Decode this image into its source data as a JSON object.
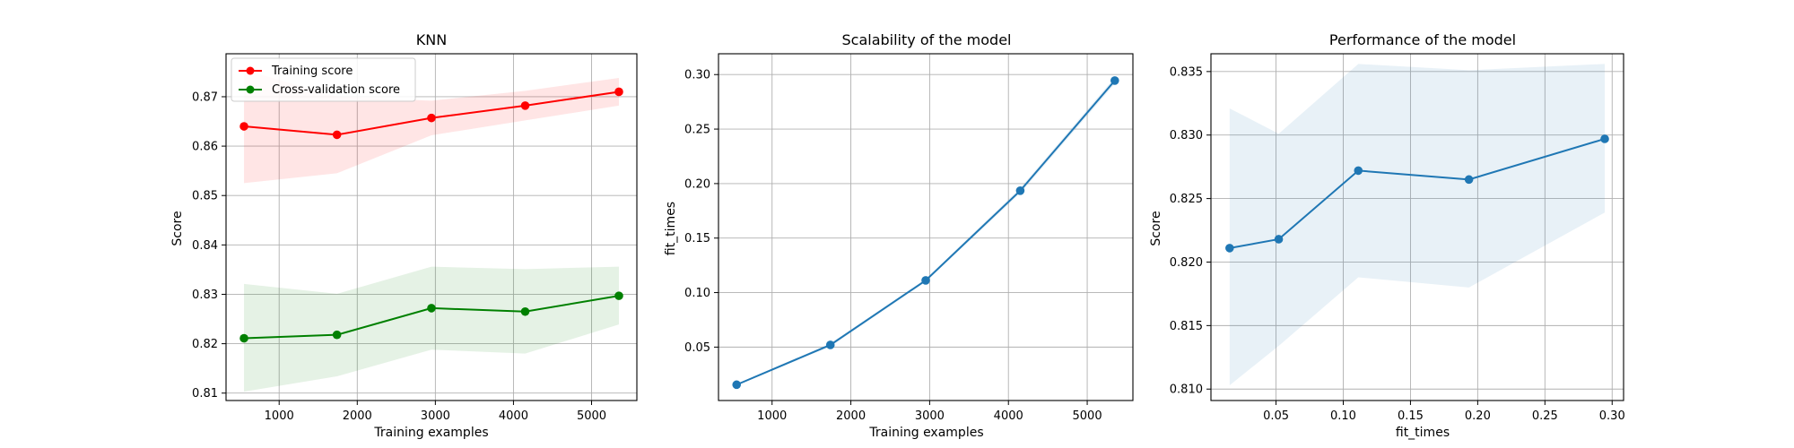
{
  "chart_data": [
    {
      "type": "line",
      "title": "KNN",
      "xlabel": "Training examples",
      "ylabel": "Score",
      "xlim": [
        320,
        5580
      ],
      "ylim": [
        0.8085,
        0.8787
      ],
      "xticks": [
        1000,
        2000,
        3000,
        4000,
        5000
      ],
      "yticks": [
        0.81,
        0.82,
        0.83,
        0.84,
        0.85,
        0.86,
        0.87
      ],
      "xtick_labels": [
        "1000",
        "2000",
        "3000",
        "4000",
        "5000"
      ],
      "ytick_labels": [
        "0.81",
        "0.82",
        "0.83",
        "0.84",
        "0.85",
        "0.86",
        "0.87"
      ],
      "grid": true,
      "legend": "top-left",
      "x": [
        550,
        1740,
        2950,
        4150,
        5350
      ],
      "series": [
        {
          "name": "Training score",
          "color": "#ff0000",
          "marker": "circle",
          "values": [
            0.864,
            0.8623,
            0.8657,
            0.8682,
            0.871
          ],
          "band_upper": [
            0.8755,
            0.87,
            0.8692,
            0.8712,
            0.8738
          ],
          "band_lower": [
            0.8525,
            0.8545,
            0.8622,
            0.8652,
            0.8682
          ],
          "band_color": "#ff0000"
        },
        {
          "name": "Cross-validation score",
          "color": "#008000",
          "marker": "circle",
          "values": [
            0.8211,
            0.8218,
            0.8272,
            0.8265,
            0.8297
          ],
          "band_upper": [
            0.8321,
            0.8301,
            0.8356,
            0.8351,
            0.8356
          ],
          "band_lower": [
            0.8103,
            0.8134,
            0.8188,
            0.818,
            0.8239
          ],
          "band_color": "#008000"
        }
      ]
    },
    {
      "type": "line",
      "title": "Scalability of the model",
      "xlabel": "Training examples",
      "ylabel": "fit_times",
      "xlim": [
        320,
        5580
      ],
      "ylim": [
        0.001,
        0.3191
      ],
      "xticks": [
        1000,
        2000,
        3000,
        4000,
        5000
      ],
      "yticks": [
        0.05,
        0.1,
        0.15,
        0.2,
        0.25,
        0.3
      ],
      "xtick_labels": [
        "1000",
        "2000",
        "3000",
        "4000",
        "5000"
      ],
      "ytick_labels": [
        "0.05",
        "0.10",
        "0.15",
        "0.20",
        "0.25",
        "0.30"
      ],
      "grid": true,
      "x": [
        550,
        1740,
        2950,
        4150,
        5350
      ],
      "series": [
        {
          "color": "#1f77b4",
          "marker": "circle",
          "values": [
            0.0155,
            0.052,
            0.1112,
            0.1935,
            0.2945
          ],
          "band_upper": [
            0.0162,
            0.0535,
            0.1125,
            0.196,
            0.2975
          ],
          "band_lower": [
            0.0148,
            0.0505,
            0.1099,
            0.191,
            0.2915
          ],
          "band_color": "#1f77b4"
        }
      ]
    },
    {
      "type": "line",
      "title": "Performance of the model",
      "xlabel": "fit_times",
      "ylabel": "Score",
      "xlim": [
        0.0016,
        0.3085
      ],
      "ylim": [
        0.8091,
        0.8364
      ],
      "xticks": [
        0.05,
        0.1,
        0.15,
        0.2,
        0.25,
        0.3
      ],
      "yticks": [
        0.81,
        0.815,
        0.82,
        0.825,
        0.83,
        0.835
      ],
      "xtick_labels": [
        "0.05",
        "0.10",
        "0.15",
        "0.20",
        "0.25",
        "0.30"
      ],
      "ytick_labels": [
        "0.810",
        "0.815",
        "0.820",
        "0.825",
        "0.830",
        "0.835"
      ],
      "grid": true,
      "x": [
        0.0155,
        0.052,
        0.1112,
        0.1935,
        0.2945
      ],
      "series": [
        {
          "color": "#1f77b4",
          "marker": "circle",
          "values": [
            0.8211,
            0.8218,
            0.8272,
            0.8265,
            0.8297
          ],
          "band_upper": [
            0.8321,
            0.8301,
            0.8356,
            0.8351,
            0.8356
          ],
          "band_lower": [
            0.8103,
            0.8134,
            0.8188,
            0.818,
            0.8239
          ],
          "band_color": "#1f77b4"
        }
      ]
    }
  ]
}
